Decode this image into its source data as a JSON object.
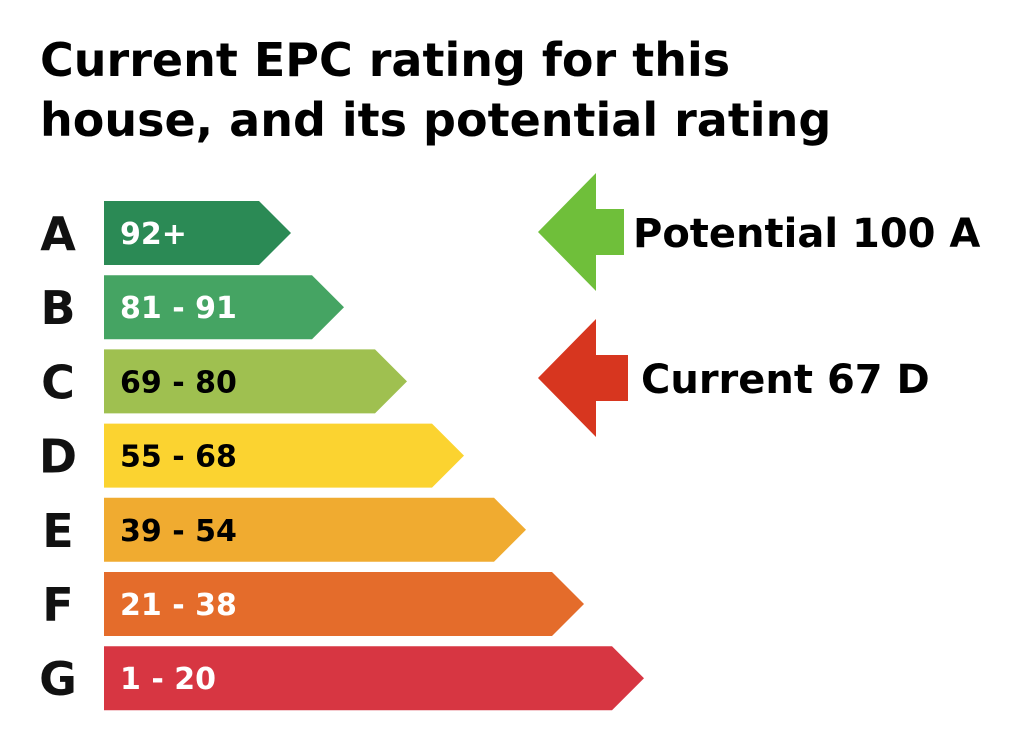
{
  "title_line1": "Current EPC rating for this",
  "title_line2": "house, and its potential rating",
  "chart_data": {
    "type": "bar",
    "bands": [
      {
        "letter": "A",
        "range": "92+",
        "min": 92,
        "max": 100,
        "color": "#2b8a55",
        "text_color": "#ffffff"
      },
      {
        "letter": "B",
        "range": "81 - 91",
        "min": 81,
        "max": 91,
        "color": "#45a463",
        "text_color": "#ffffff"
      },
      {
        "letter": "C",
        "range": "69 - 80",
        "min": 69,
        "max": 80,
        "color": "#9fc050",
        "text_color": "#000000"
      },
      {
        "letter": "D",
        "range": "55 - 68",
        "min": 55,
        "max": 68,
        "color": "#fbd330",
        "text_color": "#000000"
      },
      {
        "letter": "E",
        "range": "39 - 54",
        "min": 39,
        "max": 54,
        "color": "#f0ab30",
        "text_color": "#000000"
      },
      {
        "letter": "F",
        "range": "21 - 38",
        "min": 21,
        "max": 38,
        "color": "#e46c2b",
        "text_color": "#ffffff"
      },
      {
        "letter": "G",
        "range": "1 - 20",
        "min": 1,
        "max": 20,
        "color": "#d73642",
        "text_color": "#ffffff"
      }
    ],
    "markers": [
      {
        "kind": "potential",
        "label": "Potential 100 A",
        "score": 100,
        "band": "A",
        "color": "#6fbf3a"
      },
      {
        "kind": "current",
        "label": "Current 67 D",
        "score": 67,
        "band": "D",
        "color": "#d7361f"
      }
    ]
  }
}
